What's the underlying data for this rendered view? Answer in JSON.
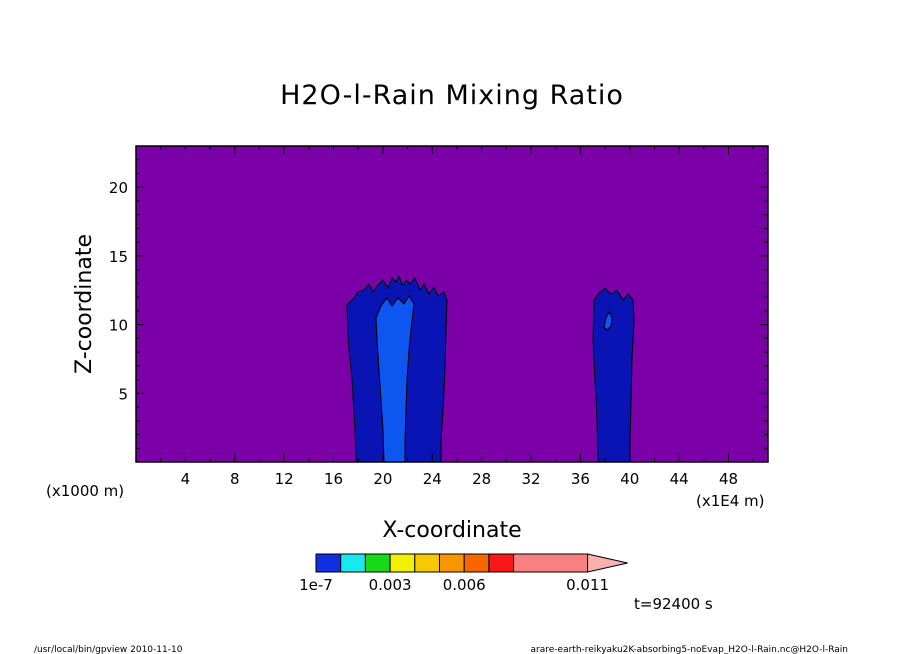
{
  "chart_data": {
    "type": "heatmap",
    "title": "H2O-l-Rain Mixing Ratio",
    "xlabel": "X-coordinate",
    "ylabel": "Z-coordinate",
    "x_unit": "(x1E4 m)",
    "y_unit": "(x1000 m)",
    "xlim": [
      0,
      51.2
    ],
    "ylim": [
      0,
      23
    ],
    "x_ticks": [
      4,
      8,
      12,
      16,
      20,
      24,
      28,
      32,
      36,
      40,
      44,
      48
    ],
    "y_ticks": [
      5,
      10,
      15,
      20
    ],
    "background_color": "#7b00a8",
    "levels": [
      {
        "value": "1e-7",
        "color": "#0f2fe0"
      },
      {
        "value": "",
        "color": "#18e8f0"
      },
      {
        "value": "0.003",
        "color": "#18d818"
      },
      {
        "value": "",
        "color": "#f0f000"
      },
      {
        "value": "0.006",
        "color": "#f8c800"
      },
      {
        "value": "",
        "color": "#f89600"
      },
      {
        "value": "",
        "color": "#f86600"
      },
      {
        "value": "",
        "color": "#f81818"
      },
      {
        "value": "0.011",
        "color": "#f88080"
      },
      {
        "value": "",
        "color": "#f8b0b0"
      }
    ],
    "colorbar_labels": [
      "1e-7",
      "0.003",
      "0.006",
      "0.011"
    ],
    "regions": [
      {
        "name": "left cloud outer",
        "x": [
          17.8,
          25.0
        ],
        "z": [
          0,
          13.3
        ],
        "level": 0,
        "color": "#0a14b4"
      },
      {
        "name": "left cloud core",
        "x": [
          19.0,
          23.2
        ],
        "z": [
          0,
          12.8
        ],
        "level": 1,
        "color": "#0d56f0"
      },
      {
        "name": "right cloud outer",
        "x": [
          36.9,
          40.1
        ],
        "z": [
          0,
          12.7
        ],
        "level": 0,
        "color": "#0a14b4"
      },
      {
        "name": "right cloud core",
        "x": [
          37.8,
          38.4
        ],
        "z": [
          9.5,
          10.8
        ],
        "level": 1,
        "color": "#0d56f0"
      }
    ],
    "grid": false
  },
  "annotations": {
    "time": "t=92400 s",
    "footer_left": "/usr/local/bin/gpview   2010-11-10",
    "footer_right": "arare-earth-reikyaku2K-absorbing5-noEvap_H2O-l-Rain.nc@H2O-l-Rain"
  }
}
